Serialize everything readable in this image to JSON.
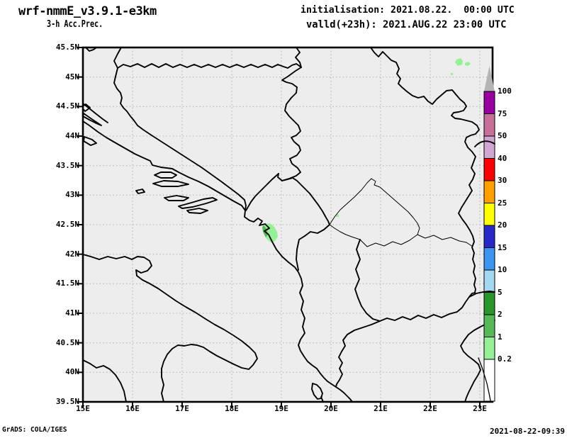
{
  "header": {
    "model": "wrf-nmmE_v3.9.1-e3km",
    "product": "3-h Acc.Prec.",
    "initialisation": "initialisation: 2021.08.22.  00:00 UTC",
    "valid": "valld(+23h): 2021.AUG.22 23:00 UTC"
  },
  "axes": {
    "lat_labels": [
      "45.5N",
      "45N",
      "44.5N",
      "44N",
      "43.5N",
      "43N",
      "42.5N",
      "42N",
      "41.5N",
      "41N",
      "40.5N",
      "40N",
      "39.5N"
    ],
    "lon_labels": [
      "15E",
      "16E",
      "17E",
      "18E",
      "19E",
      "20E",
      "21E",
      "22E",
      "23E"
    ]
  },
  "colorbar": {
    "labels": [
      "100",
      "75",
      "50",
      "40",
      "30",
      "25",
      "20",
      "15",
      "10",
      "5",
      "2",
      "1",
      "0.2"
    ],
    "thresholds_mm": [
      100,
      75,
      50,
      40,
      30,
      25,
      20,
      15,
      10,
      5,
      2,
      1,
      0.2
    ],
    "segment_colors_top_to_bottom": [
      "#9a00a0",
      "#c86e9b",
      "#d2a6d2",
      "#fa0000",
      "#ffa000",
      "#ffff00",
      "#2828c8",
      "#3c96f0",
      "#a4d8f0",
      "#289628",
      "#55b955",
      "#96f096"
    ],
    "above_max_color": "#b4b4b4",
    "below_min_color": "#ffffff"
  },
  "map": {
    "background_color": "#ededed",
    "grid_color": "#bdbdbd",
    "outline_color": "#000000",
    "region": "Adriatic / western Balkans, 15E-23E, 39.5N-45.5N",
    "precip_spots": [
      {
        "location": "Montenegro Adriatic coast (Bay of Kotor area)",
        "value_range_mm": "0.2-2"
      },
      {
        "location": "north-east Serbia near Romanian border",
        "value_range_mm": "0.2-1"
      },
      {
        "location": "south-west Serbia (tiny dot)",
        "value_range_mm": "0.2-1"
      }
    ]
  },
  "footer": {
    "left": "GrADS: COLA/IGES",
    "right": "2021-08-22-09:39"
  }
}
